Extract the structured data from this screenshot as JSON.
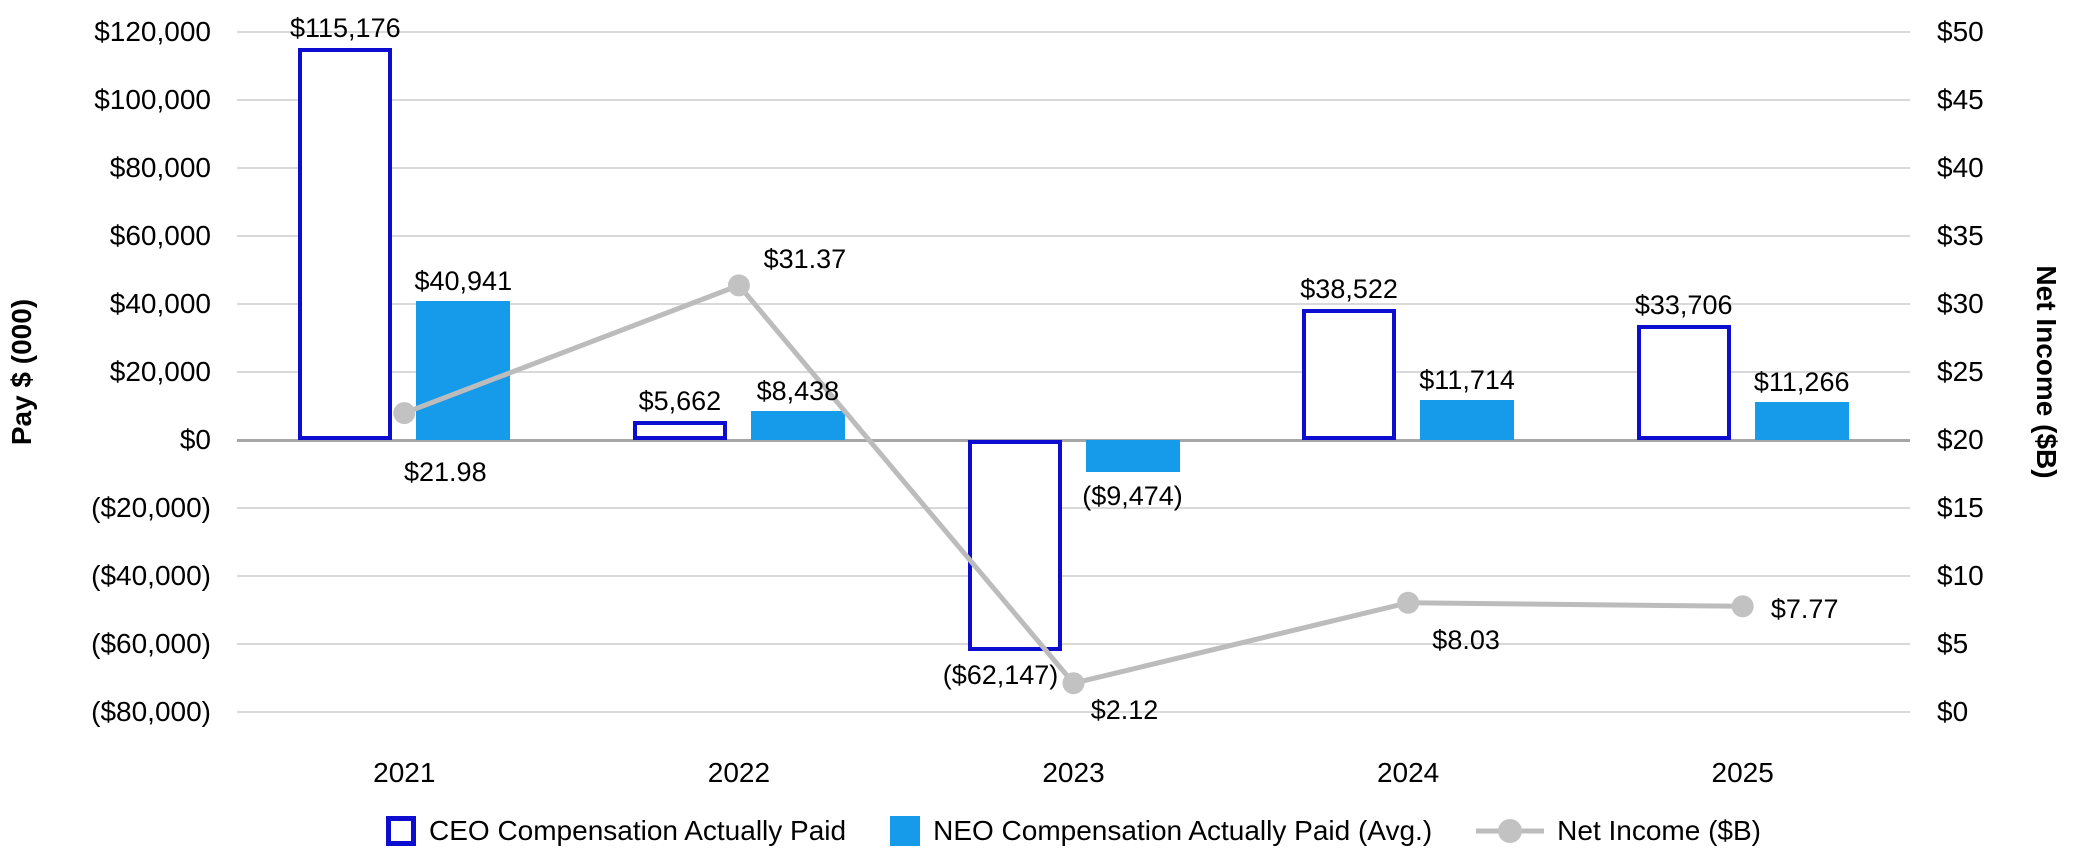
{
  "chart_data": {
    "type": "combo-bar-line",
    "categories": [
      "2021",
      "2022",
      "2023",
      "2024",
      "2025"
    ],
    "series": [
      {
        "name": "CEO Compensation Actually Paid",
        "kind": "bar",
        "variant": "outline",
        "axis": "left",
        "values": [
          115176,
          5662,
          -62147,
          38522,
          33706
        ],
        "value_labels": [
          "$115,176",
          "$5,662",
          "($62,147)",
          "$38,522",
          "$33,706"
        ]
      },
      {
        "name": "NEO Compensation Actually Paid (Avg.)",
        "kind": "bar",
        "variant": "solid",
        "axis": "left",
        "values": [
          40941,
          8438,
          -9474,
          11714,
          11266
        ],
        "value_labels": [
          "$40,941",
          "$8,438",
          "($9,474)",
          "$11,714",
          "$11,266"
        ]
      },
      {
        "name": "Net Income ($B)",
        "kind": "line",
        "axis": "right",
        "values": [
          21.98,
          31.37,
          2.12,
          8.03,
          7.77
        ],
        "value_labels": [
          "$21.98",
          "$31.37",
          "$2.12",
          "$8.03",
          "$7.77"
        ]
      }
    ],
    "left_axis": {
      "title": "Pay $ (000)",
      "min": -80000,
      "max": 120000,
      "step": 20000,
      "tick_labels_top_to_bottom": [
        "$120,000",
        "$100,000",
        "$80,000",
        "$60,000",
        "$40,000",
        "$20,000",
        "$0",
        "($20,000)",
        "($40,000)",
        "($60,000)",
        "($80,000)"
      ]
    },
    "right_axis": {
      "title": "Net Income ($B)",
      "min": 0,
      "max": 50,
      "step": 5,
      "tick_labels_top_to_bottom": [
        "$50",
        "$45",
        "$40",
        "$35",
        "$30",
        "$25",
        "$20",
        "$15",
        "$10",
        "$5",
        "$0"
      ]
    },
    "grid": "horizontal-only",
    "legend_position": "bottom",
    "colors": {
      "ceo_outline": "#0D0DD0",
      "neo_fill": "#159BEA",
      "net_income_line": "#BCBCBC",
      "net_income_marker": "#C2C2C2",
      "gridline": "#D9D9D9",
      "zero_axis": "#A6A6A6",
      "text": "#000000"
    }
  }
}
